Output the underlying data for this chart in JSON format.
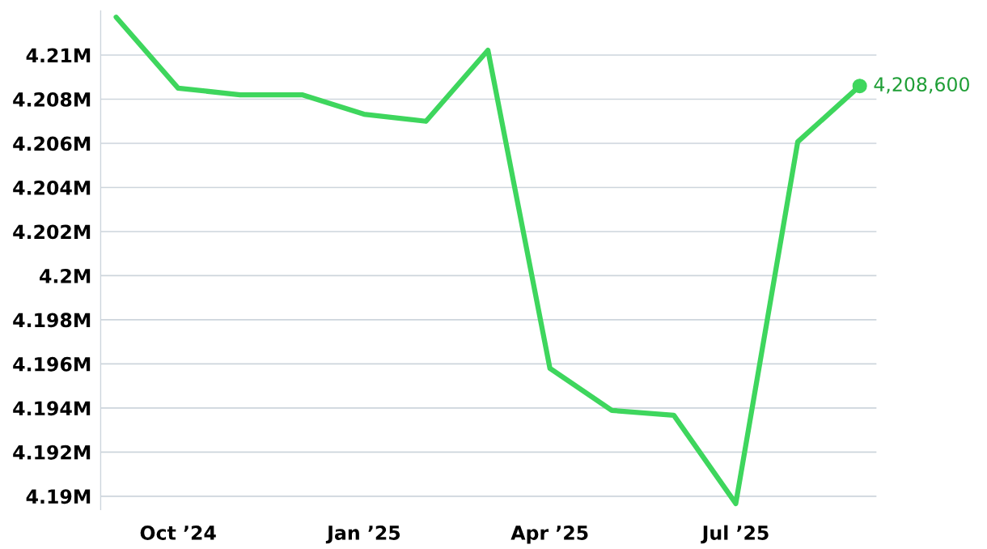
{
  "chart_data": {
    "type": "line",
    "categories": [
      null,
      "Oct ’24",
      null,
      null,
      "Jan ’25",
      null,
      null,
      "Apr ’25",
      null,
      null,
      "Jul ’25",
      null,
      null
    ],
    "series": [
      {
        "color": "#3ed65d",
        "values": [
          4211720,
          4208500,
          4208200,
          4208200,
          4207320,
          4207000,
          4210220,
          4195800,
          4193890,
          4193670,
          4189670,
          4206070,
          4208600
        ],
        "value_labels": [
          null,
          null,
          null,
          null,
          null,
          null,
          null,
          null,
          null,
          null,
          null,
          null,
          "4,208,600"
        ]
      }
    ],
    "ylim": [
      4189400,
      4212000
    ],
    "yticks": [
      {
        "value": 4190000,
        "label": "4.19M"
      },
      {
        "value": 4192000,
        "label": "4.192M"
      },
      {
        "value": 4194000,
        "label": "4.194M"
      },
      {
        "value": 4196000,
        "label": "4.196M"
      },
      {
        "value": 4198000,
        "label": "4.198M"
      },
      {
        "value": 4200000,
        "label": "4.2M"
      },
      {
        "value": 4202000,
        "label": "4.202M"
      },
      {
        "value": 4204000,
        "label": "4.204M"
      },
      {
        "value": 4206000,
        "label": "4.206M"
      },
      {
        "value": 4208000,
        "label": "4.208M"
      },
      {
        "value": 4210000,
        "label": "4.21M"
      }
    ],
    "grid": "y",
    "marker": "none",
    "line_style": "solid",
    "legend": false
  }
}
